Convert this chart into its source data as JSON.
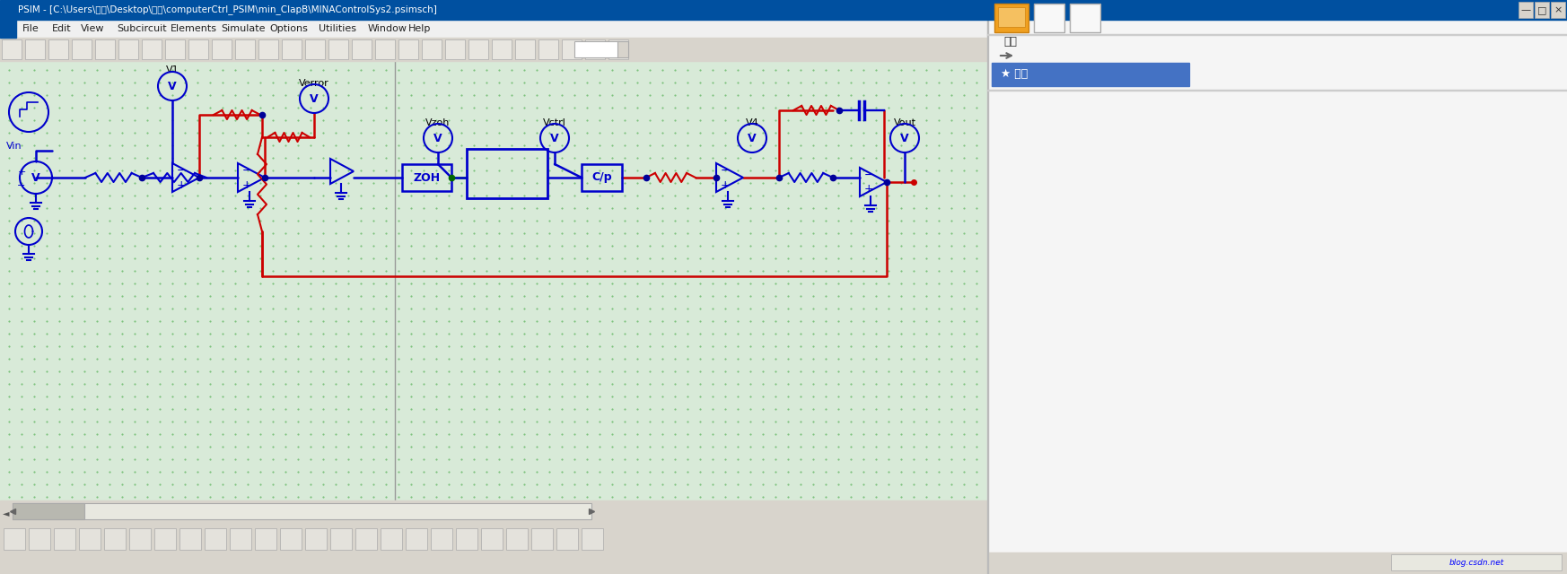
{
  "title_bar": "PSIM - [C:\\Users\\文远\\Desktop\\仿真\\computerCtrl_PSIM\\min_ClapB\\MINAControlSys2.psimsch]",
  "menu_items": [
    "File",
    "Edit",
    "View",
    "Subcircuit",
    "Elements",
    "Simulate",
    "Options",
    "Utilities",
    "Window",
    "Help"
  ],
  "canvas_bg": "#d8ead8",
  "dot_color": "#44aa44",
  "wire_blue": "#0000cc",
  "wire_red": "#cc0000",
  "wire_green": "#009900",
  "title_bar_bg": "#0050a0",
  "menubar_bg": "#f0f0f0",
  "toolbar_bg": "#d8d4cc",
  "right_panel_bg": "#f8f8f8",
  "right_blue_btn": "#4472c4",
  "figsize": [
    17.46,
    6.4
  ],
  "dpi": 100
}
